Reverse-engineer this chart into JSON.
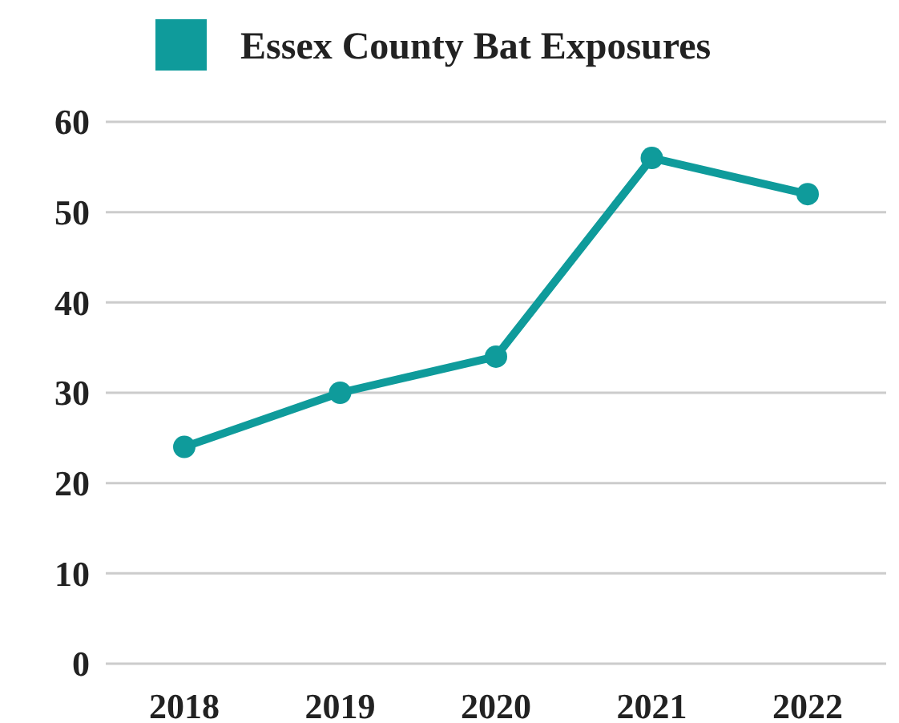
{
  "chart_data": {
    "type": "line",
    "categories": [
      "2018",
      "2019",
      "2020",
      "2021",
      "2022"
    ],
    "series": [
      {
        "name": "Essex County Bat Exposures",
        "color": "#0f9b9b",
        "values": [
          24,
          30,
          34,
          56,
          52
        ]
      }
    ],
    "ylim": [
      0,
      60
    ],
    "yticks": [
      0,
      10,
      20,
      30,
      40,
      50,
      60
    ],
    "grid": "y",
    "legend": "top",
    "marker": "circle",
    "line_style": "solid"
  }
}
